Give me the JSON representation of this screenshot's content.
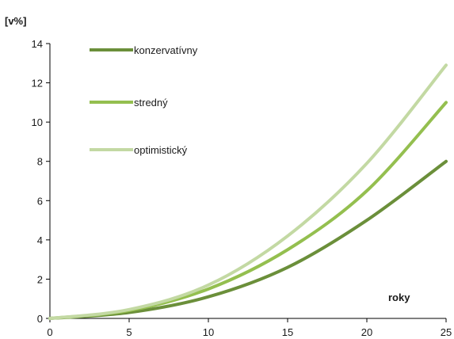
{
  "chart_data": {
    "type": "line",
    "title": "",
    "ylabel": "[v%]",
    "xlabel": "roky",
    "xlim": [
      0,
      25
    ],
    "ylim": [
      0,
      14
    ],
    "xticks": [
      0,
      5,
      10,
      15,
      20,
      25
    ],
    "yticks": [
      0,
      2,
      4,
      6,
      8,
      10,
      12,
      14
    ],
    "grid": false,
    "legend_position": "top-left",
    "x": [
      0,
      5,
      10,
      15,
      20,
      25
    ],
    "series": [
      {
        "name": "konzervatívny",
        "color": "#6b8f3a",
        "values": [
          0,
          0.3,
          1.1,
          2.6,
          5.0,
          8.0
        ]
      },
      {
        "name": "stredný",
        "color": "#94bf4f",
        "values": [
          0,
          0.4,
          1.5,
          3.5,
          6.5,
          11.0
        ]
      },
      {
        "name": "optimistický",
        "color": "#c3d9a3",
        "values": [
          0,
          0.45,
          1.7,
          4.2,
          7.9,
          12.9
        ]
      }
    ]
  }
}
